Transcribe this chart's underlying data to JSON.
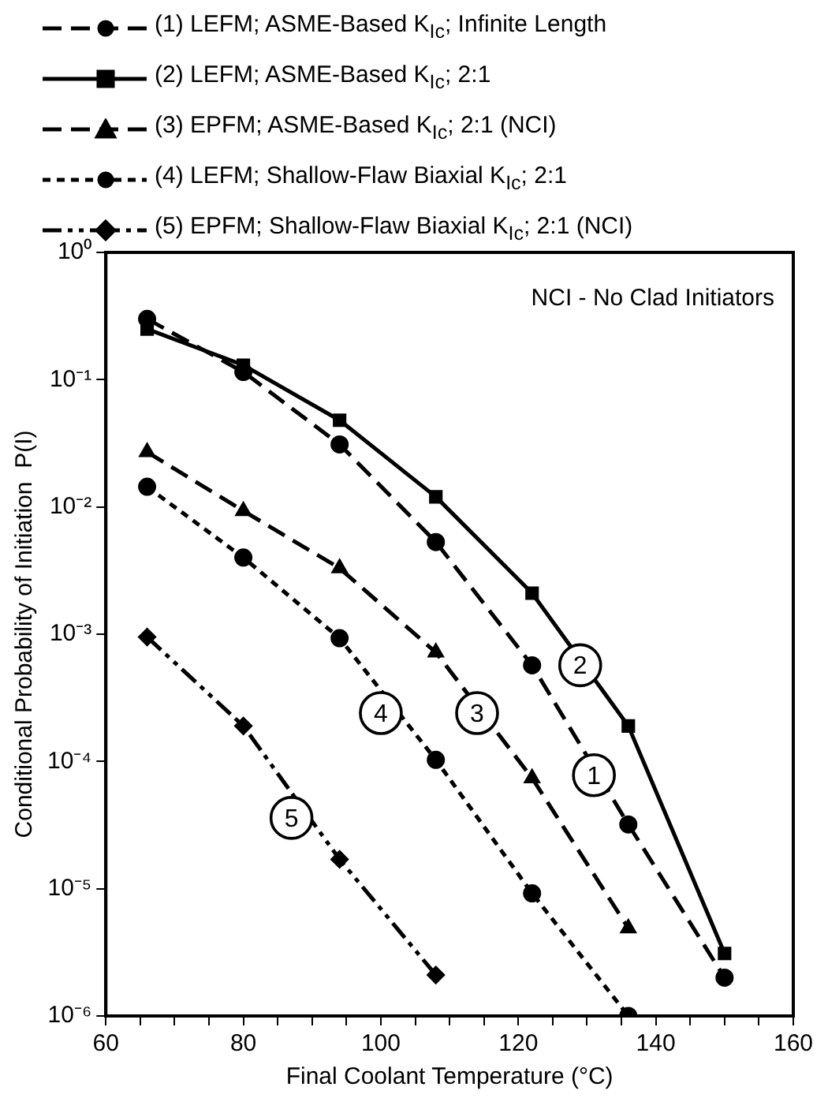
{
  "chart_data": {
    "type": "line",
    "xlabel": "Final Coolant Temperature (°C)",
    "ylabel": "Conditional Probability of Initiation  P(I)",
    "log": "y",
    "legend": "top",
    "grid": false,
    "x": [
      66,
      80,
      94,
      108,
      122,
      136,
      150
    ],
    "series": [
      {
        "name": "(1) LEFM; ASME-Based K$_{Ic}$; Infinite Length",
        "color": "#000000",
        "line_style": "dashed",
        "marker": "circle",
        "values": [
          0.3,
          0.115,
          0.031,
          0.0053,
          0.00057,
          3.2e-05,
          2e-06
        ]
      },
      {
        "name": "(2) LEFM; ASME-Based K$_{Ic}$; 2:1",
        "color": "#000000",
        "line_style": "solid",
        "marker": "square",
        "values": [
          0.25,
          0.13,
          0.048,
          0.012,
          0.0021,
          0.00019,
          3.1e-06
        ]
      },
      {
        "name": "(3) EPFM; ASME-Based K$_{Ic}$; 2:1 (NCI)",
        "color": "#000000",
        "line_style": "dashed",
        "marker": "triangle",
        "values": [
          0.027,
          0.0093,
          0.0033,
          0.00072,
          7.4e-05,
          4.9e-06,
          null
        ]
      },
      {
        "name": "(4) LEFM; Shallow-Flaw Biaxial K$_{Ic}$; 2:1",
        "color": "#000000",
        "line_style": "dotted",
        "marker": "circle",
        "values": [
          0.0144,
          0.004,
          0.00093,
          0.000103,
          9.2e-06,
          1e-06,
          null
        ]
      },
      {
        "name": "(5) EPFM; Shallow-Flaw Biaxial K$_{Ic}$; 2:1 (NCI)",
        "color": "#000000",
        "line_style": "dashdot",
        "marker": "diamond",
        "values": [
          0.00095,
          0.00019,
          1.7e-05,
          2.1e-06,
          null,
          null,
          null
        ]
      }
    ],
    "xlim": [
      60,
      160
    ],
    "xticks": [
      60,
      {
        "value": 65,
        "label": null
      },
      {
        "value": 70,
        "label": null
      },
      {
        "value": 75,
        "label": null
      },
      80,
      {
        "value": 85,
        "label": null
      },
      {
        "value": 90,
        "label": null
      },
      {
        "value": 95,
        "label": null
      },
      100,
      {
        "value": 105,
        "label": null
      },
      {
        "value": 110,
        "label": null
      },
      {
        "value": 115,
        "label": null
      },
      120,
      {
        "value": 125,
        "label": null
      },
      {
        "value": 130,
        "label": null
      },
      {
        "value": 135,
        "label": null
      },
      140,
      {
        "value": 145,
        "label": null
      },
      {
        "value": 150,
        "label": null
      },
      {
        "value": 155,
        "label": null
      },
      160
    ],
    "ylim": [
      1e-06,
      1
    ],
    "yticks": [
      {
        "value": 1e-06,
        "label": "10⁻⁶"
      },
      {
        "value": 1e-05,
        "label": "10⁻⁵"
      },
      {
        "value": 0.0001,
        "label": "10⁻⁴"
      },
      {
        "value": 0.001,
        "label": "10⁻³"
      },
      {
        "value": 0.01,
        "label": "10⁻²"
      },
      {
        "value": 0.1,
        "label": "10⁻¹"
      },
      {
        "value": 1,
        "label": "10⁰"
      }
    ],
    "annotations": [
      "NCI - No Clad Initiators",
      {
        "text": "1",
        "x": 131,
        "y": 7.8e-05
      },
      {
        "text": "2",
        "x": 129,
        "y": 0.00057
      },
      {
        "text": "3",
        "x": 114,
        "y": 0.00024
      },
      {
        "text": "4",
        "x": 100,
        "y": 0.00024
      },
      {
        "text": "5",
        "x": 87,
        "y": 3.6e-05
      }
    ]
  }
}
